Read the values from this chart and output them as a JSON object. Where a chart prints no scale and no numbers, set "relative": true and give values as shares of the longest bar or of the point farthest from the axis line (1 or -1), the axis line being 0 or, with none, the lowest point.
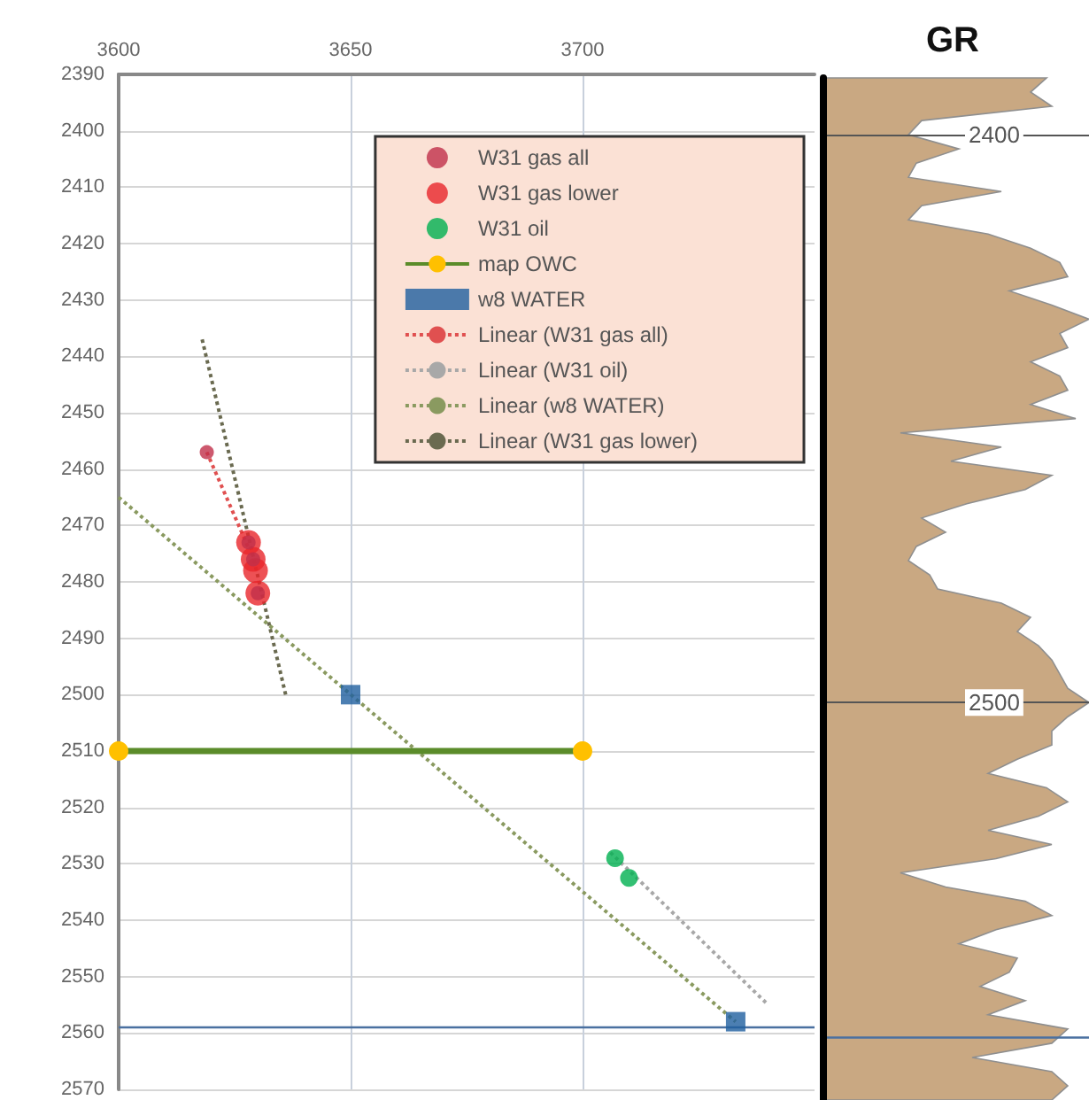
{
  "chart_data": [
    {
      "type": "scatter",
      "xlim": [
        3600,
        3750
      ],
      "xticks": [
        3600,
        3650,
        3700
      ],
      "ylim": [
        2570,
        2390
      ],
      "yticks": [
        2390,
        2400,
        2410,
        2420,
        2430,
        2440,
        2450,
        2460,
        2470,
        2480,
        2490,
        2500,
        2510,
        2520,
        2530,
        2540,
        2550,
        2560,
        2570
      ],
      "grid": true,
      "legend": "top right",
      "series": [
        {
          "name": "W31 gas all",
          "type": "scatter",
          "marker": "circle",
          "color": "#c0304a",
          "x": [
            3619,
            3628,
            3629,
            3630
          ],
          "values": [
            2457,
            2473,
            2476,
            2482
          ]
        },
        {
          "name": "W31 gas lower",
          "type": "scatter",
          "marker": "circle",
          "color": "#e8262a",
          "x": [
            3628,
            3629,
            3629.5,
            3630
          ],
          "values": [
            2473,
            2476,
            2478,
            2482
          ]
        },
        {
          "name": "W31 oil",
          "type": "scatter",
          "marker": "circle",
          "color": "#00b050",
          "x": [
            3707,
            3710
          ],
          "values": [
            2529,
            2532.5
          ]
        },
        {
          "name": "map OWC",
          "type": "line",
          "marker": "circle",
          "line_style": "solid",
          "color": "#5b8c2a",
          "x": [
            3600,
            3700
          ],
          "values": [
            2510,
            2510
          ]
        },
        {
          "name": "w8 WATER",
          "type": "scatter",
          "marker": "square",
          "color": "#1f5f9f",
          "x": [
            3650,
            3733
          ],
          "values": [
            2500,
            2558
          ]
        },
        {
          "name": "Linear (W31 gas all)",
          "type": "line",
          "marker": "none",
          "line_style": "dotted",
          "color": "#e05050",
          "x": [
            3619,
            3628
          ],
          "values": [
            2457,
            2474
          ]
        },
        {
          "name": "Linear (W31 oil)",
          "type": "line",
          "marker": "none",
          "line_style": "dotted",
          "color": "#a8a8a8",
          "x": [
            3706,
            3740
          ],
          "values": [
            2528,
            2555
          ]
        },
        {
          "name": "Linear (w8 WATER)",
          "type": "line",
          "marker": "none",
          "line_style": "dotted",
          "color": "#8a9a60",
          "x": [
            3600,
            3733
          ],
          "values": [
            2465,
            2558
          ]
        },
        {
          "name": "Linear (W31 gas lower)",
          "type": "line",
          "marker": "none",
          "line_style": "dotted",
          "color": "#6a6a50",
          "x": [
            3618,
            3636
          ],
          "values": [
            2437,
            2500
          ]
        }
      ],
      "ref_lines": [
        {
          "axis": "y",
          "value": 2559,
          "color": "#4a70a0"
        }
      ]
    },
    {
      "type": "area",
      "title": "GR",
      "orientation": "horizontal",
      "relative": true,
      "color": "#c9a882",
      "ylim": [
        2570,
        2390
      ],
      "yticks": [
        2400,
        2500
      ],
      "grid": "y",
      "tick_labels": "y",
      "x": [
        2390,
        2392.5,
        2395,
        2397.5,
        2400,
        2402.5,
        2405,
        2407.5,
        2410,
        2412.5,
        2415,
        2417.5,
        2420,
        2422.5,
        2425,
        2427.5,
        2430,
        2432.5,
        2435,
        2437.5,
        2440,
        2442.5,
        2445,
        2447.5,
        2450,
        2452.5,
        2455,
        2457.5,
        2460,
        2462.5,
        2465,
        2467.5,
        2470,
        2472.5,
        2475,
        2477.5,
        2480,
        2482.5,
        2485,
        2487.5,
        2490,
        2492.5,
        2495,
        2497.5,
        2500,
        2502.5,
        2505,
        2507.5,
        2510,
        2512.5,
        2515,
        2517.5,
        2520,
        2522.5,
        2525,
        2527.5,
        2530,
        2532.5,
        2535,
        2537.5,
        2540,
        2542.5,
        2545,
        2547.5,
        2550,
        2552.5,
        2555,
        2557.5,
        2560,
        2562.5,
        2565,
        2567.5,
        2570
      ],
      "values": [
        0.84,
        0.78,
        0.86,
        0.37,
        0.32,
        0.51,
        0.35,
        0.32,
        0.67,
        0.37,
        0.32,
        0.62,
        0.78,
        0.89,
        0.92,
        0.7,
        0.86,
        1,
        0.89,
        0.92,
        0.78,
        0.89,
        0.92,
        0.78,
        0.95,
        0.29,
        0.67,
        0.48,
        0.86,
        0.76,
        0.54,
        0.37,
        0.46,
        0.35,
        0.32,
        0.4,
        0.43,
        0.67,
        0.78,
        0.73,
        0.81,
        0.86,
        0.89,
        0.92,
        1,
        0.92,
        0.86,
        0.86,
        0.73,
        0.62,
        0.84,
        0.92,
        0.81,
        0.62,
        0.86,
        0.65,
        0.29,
        0.46,
        0.76,
        0.86,
        0.65,
        0.51,
        0.73,
        0.7,
        0.59,
        0.76,
        0.62,
        0.92,
        0.86,
        0.56,
        0.86,
        0.92,
        0.86
      ],
      "ref_lines": [
        {
          "axis": "y",
          "value": 2559,
          "color": "#4a70a0"
        }
      ]
    }
  ]
}
